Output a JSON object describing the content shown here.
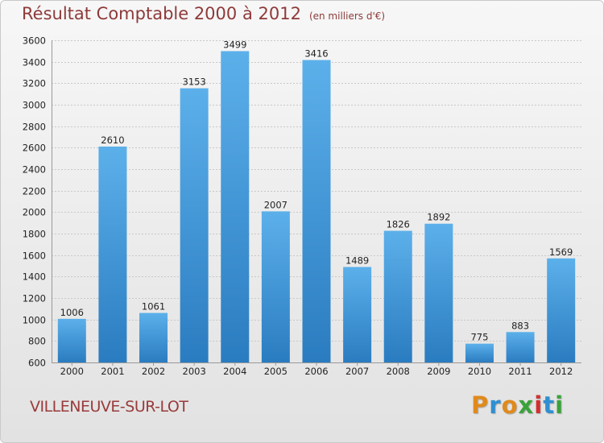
{
  "title": "Résultat Comptable 2000 à 2012",
  "unit_note": "(en milliers d'€)",
  "city": "VILLENEUVE-SUR-LOT",
  "logo": {
    "text": "Proxiti",
    "letters": [
      "P",
      "r",
      "o",
      "x",
      "i",
      "t",
      "i"
    ],
    "colors": [
      "#e08a1c",
      "#2f8fd0",
      "#e08a1c",
      "#3aa23a",
      "#d03030",
      "#2f8fd0",
      "#3aa23a"
    ]
  },
  "chart_data": {
    "type": "bar",
    "title": "Résultat Comptable 2000 à 2012",
    "xlabel": "",
    "ylabel": "",
    "categories": [
      "2000",
      "2001",
      "2002",
      "2003",
      "2004",
      "2005",
      "2006",
      "2007",
      "2008",
      "2009",
      "2010",
      "2011",
      "2012"
    ],
    "values": [
      1006,
      2610,
      1061,
      3153,
      3499,
      2007,
      3416,
      1489,
      1826,
      1892,
      775,
      883,
      1569
    ],
    "ylim": [
      600,
      3600
    ],
    "yticks": [
      600,
      800,
      1000,
      1200,
      1400,
      1600,
      1800,
      2000,
      2200,
      2400,
      2600,
      2800,
      3000,
      3200,
      3400,
      3600
    ],
    "grid": true,
    "bar_color": "#3d93d8"
  }
}
